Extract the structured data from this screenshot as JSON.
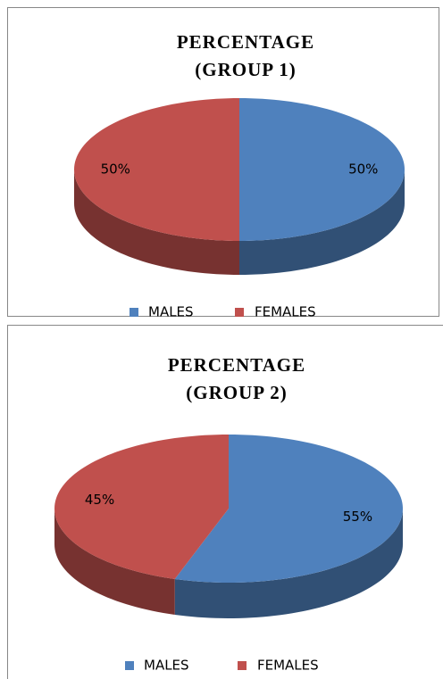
{
  "chart_data": [
    {
      "type": "pie",
      "title": "PERCENTAGE (GROUP 1)",
      "categories": [
        "MALES",
        "FEMALES"
      ],
      "values": [
        50,
        50
      ],
      "value_labels": [
        "50%",
        "50%"
      ],
      "colors": [
        "#4f81bd",
        "#c0504d"
      ],
      "legend": "bottom"
    },
    {
      "type": "pie",
      "title": "PERCENTAGE (GROUP 2)",
      "categories": [
        "MALES",
        "FEMALES"
      ],
      "values": [
        55,
        45
      ],
      "value_labels": [
        "55%",
        "45%"
      ],
      "colors": [
        "#4f81bd",
        "#c0504d"
      ],
      "legend": "bottom"
    }
  ]
}
